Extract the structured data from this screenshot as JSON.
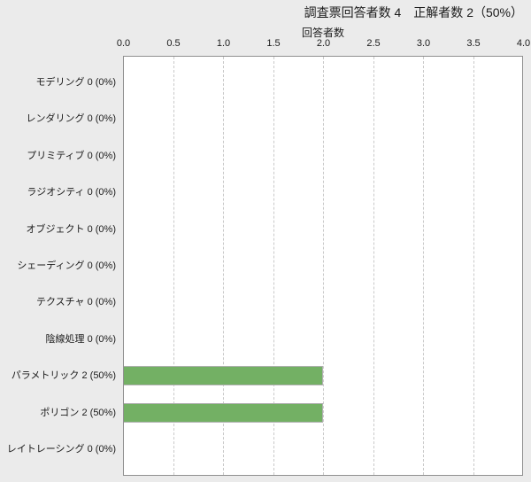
{
  "page": {
    "background_color": "#ebebeb",
    "text_color": "#1a1a1a"
  },
  "header": {
    "title": "調査票回答者数 4　正解者数 2（50%）",
    "respondents_total": 4,
    "correct_total": 2,
    "correct_percent": "50%"
  },
  "chart_data": {
    "type": "bar",
    "orientation": "horizontal",
    "title": "調査票回答者数 4　正解者数 2（50%）",
    "xlabel": "回答者数",
    "xlim": [
      0,
      4
    ],
    "xtick_labels": [
      "0.0",
      "0.5",
      "1.0",
      "1.5",
      "2.0",
      "2.5",
      "3.0",
      "3.5",
      "4.0"
    ],
    "grid": "vertical-dashed",
    "legend": "none",
    "categories": [
      "モデリング",
      "レンダリング",
      "プリミティブ",
      "ラジオシティ",
      "オブジェクト",
      "シェーディング",
      "テクスチャ",
      "陰線処理",
      "パラメトリック",
      "ポリゴン",
      "レイトレーシング"
    ],
    "values": [
      0,
      0,
      0,
      0,
      0,
      0,
      0,
      0,
      2,
      2,
      0
    ],
    "percents": [
      "0%",
      "0%",
      "0%",
      "0%",
      "0%",
      "0%",
      "0%",
      "0%",
      "50%",
      "50%",
      "0%"
    ],
    "row_labels": [
      "モデリング 0 (0%)",
      "レンダリング 0 (0%)",
      "プリミティブ 0 (0%)",
      "ラジオシティ 0 (0%)",
      "オブジェクト 0 (0%)",
      "シェーディング 0 (0%)",
      "テクスチャ 0 (0%)",
      "陰線処理 0 (0%)",
      "パラメトリック 2 (50%)",
      "ポリゴン 2 (50%)",
      "レイトレーシング 0 (0%)"
    ],
    "bar_color": "#73b064",
    "bar_border_color": "#b0b0b0",
    "plot_background": "#ffffff",
    "plot_border_color": "#909090",
    "gridline_color": "#c9c9c9"
  }
}
